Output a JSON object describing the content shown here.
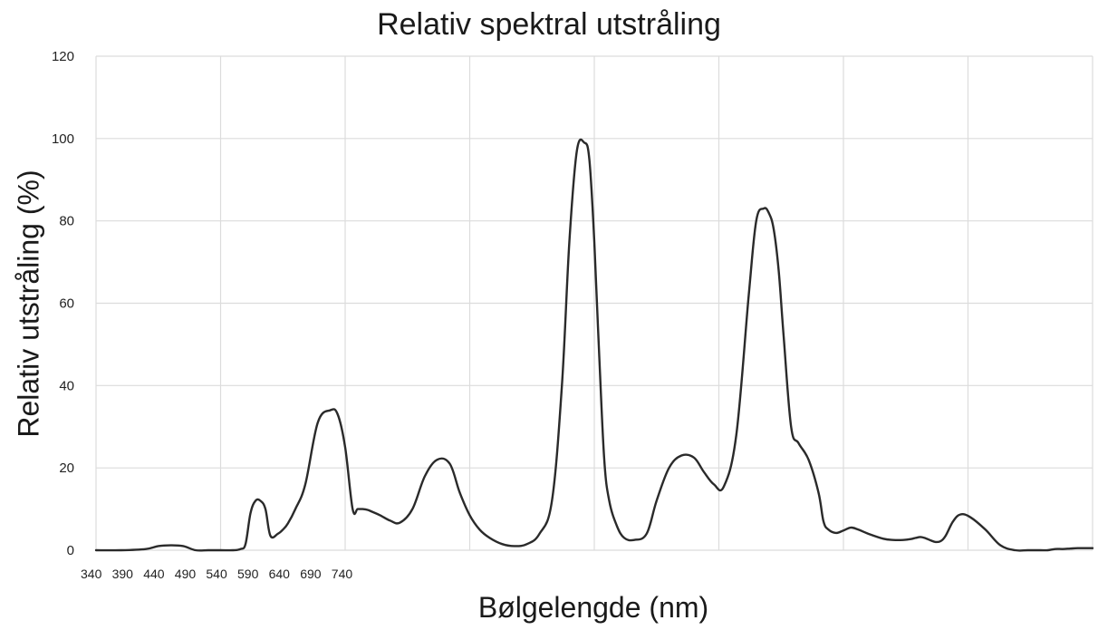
{
  "chart_data": {
    "type": "line",
    "title": "Relativ spektral utstråling",
    "xlabel": "Bølgelengde (nm)",
    "ylabel": "Relativ utstråling (%)",
    "xlim": [
      340,
      740
    ],
    "ylim": [
      0,
      120
    ],
    "yticks": [
      0,
      20,
      40,
      60,
      80,
      100,
      120
    ],
    "xticks": [
      "340",
      "390",
      "440",
      "490",
      "540",
      "590",
      "640",
      "690",
      "740"
    ],
    "grid": true,
    "series": [
      {
        "color": "#2a2a2a",
        "x": [
          340,
          350,
          360,
          365,
          370,
          375,
          380,
          385,
          390,
          395,
          398,
          400,
          402,
          404,
          406,
          408,
          410,
          413,
          415,
          417,
          420,
          424,
          429,
          434,
          437,
          440,
          443,
          445,
          447,
          449,
          451,
          454,
          458,
          462,
          467,
          472,
          477,
          482,
          486,
          490,
          494,
          498,
          503,
          508,
          513,
          518,
          523,
          527,
          530,
          533,
          536,
          538,
          540,
          542,
          544,
          546,
          549,
          552,
          556,
          561,
          565,
          570,
          575,
          580,
          584,
          588,
          592,
          597,
          602,
          605,
          608,
          610,
          612,
          614,
          616,
          619,
          622,
          626,
          630,
          632,
          634,
          637,
          640,
          643,
          646,
          650,
          656,
          660,
          664,
          667,
          669,
          671,
          673,
          675,
          677,
          679,
          681,
          684,
          687,
          691,
          697,
          703,
          709,
          714,
          719,
          722,
          725,
          728,
          731,
          734,
          738,
          740
        ],
        "values": [
          0,
          0,
          0.3,
          1,
          1.2,
          1,
          0,
          0,
          0,
          0,
          0.3,
          1.5,
          9,
          12,
          12,
          10,
          3.5,
          4,
          5,
          6.5,
          10,
          16,
          31,
          34,
          33,
          25,
          10,
          10,
          10,
          9.8,
          9.3,
          8.5,
          7.2,
          6.7,
          10,
          18,
          22,
          21,
          14,
          8.5,
          5,
          3,
          1.5,
          1,
          1.5,
          4,
          12,
          40,
          75,
          97,
          99,
          95,
          75,
          47,
          22,
          12,
          6,
          3,
          2.5,
          4,
          12,
          20,
          23,
          22.5,
          19,
          16,
          15.5,
          28,
          62,
          80,
          83,
          82,
          78,
          68,
          52,
          30,
          26,
          22,
          14,
          7,
          5,
          4.2,
          4.8,
          5.5,
          5,
          4,
          2.8,
          2.5,
          2.5,
          2.7,
          3,
          3.2,
          2.9,
          2.4,
          2,
          2.2,
          3.5,
          7,
          8.7,
          8,
          5,
          1.2,
          0,
          0,
          0,
          0,
          0.3,
          0.3,
          0.4,
          0.5,
          0.5,
          0.5
        ]
      }
    ]
  }
}
